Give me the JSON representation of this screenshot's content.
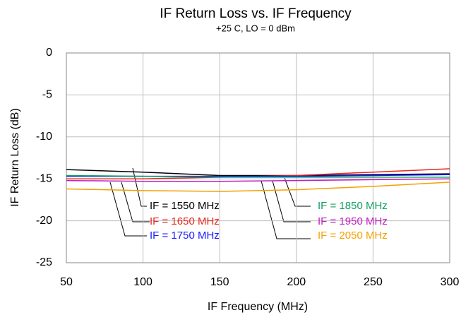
{
  "chart_data": {
    "type": "line",
    "title": "IF Return Loss vs. IF Frequency",
    "subtitle": "+25 C, LO = 0 dBm",
    "x_label": "IF Frequency (MHz)",
    "y_label": "IF Return Loss (dB)",
    "x": [
      50,
      100,
      150,
      200,
      250,
      300
    ],
    "series": [
      {
        "name": "IF = 1550  MHz",
        "color": "#000000",
        "values": [
          -13.9,
          -14.2,
          -14.6,
          -14.6,
          -14.5,
          -14.4
        ]
      },
      {
        "name": "IF =  1650 MHz",
        "color": "#e8261c",
        "values": [
          -15.0,
          -15.0,
          -14.8,
          -14.6,
          -14.2,
          -13.8
        ]
      },
      {
        "name": "IF =  1750 MHz",
        "color": "#1a1aff",
        "values": [
          -14.7,
          -14.7,
          -14.7,
          -14.7,
          -14.6,
          -14.5
        ]
      },
      {
        "name": "IF = 1850 MHz",
        "color": "#11a060",
        "values": [
          -14.6,
          -14.7,
          -14.8,
          -14.8,
          -14.8,
          -14.8
        ]
      },
      {
        "name": "IF = 1950 MHz",
        "color": "#c020c0",
        "values": [
          -15.2,
          -15.3,
          -15.3,
          -15.2,
          -15.1,
          -15.0
        ]
      },
      {
        "name": "IF = 2050 MHz",
        "color": "#f5a000",
        "values": [
          -16.2,
          -16.4,
          -16.5,
          -16.3,
          -15.9,
          -15.4
        ]
      }
    ],
    "xlim": [
      50,
      300
    ],
    "xticks": [
      50,
      100,
      150,
      200,
      250,
      300
    ],
    "ylim": [
      -25,
      0
    ],
    "yticks": [
      0,
      -5,
      -10,
      -15,
      -20,
      -25
    ],
    "grid": true
  }
}
